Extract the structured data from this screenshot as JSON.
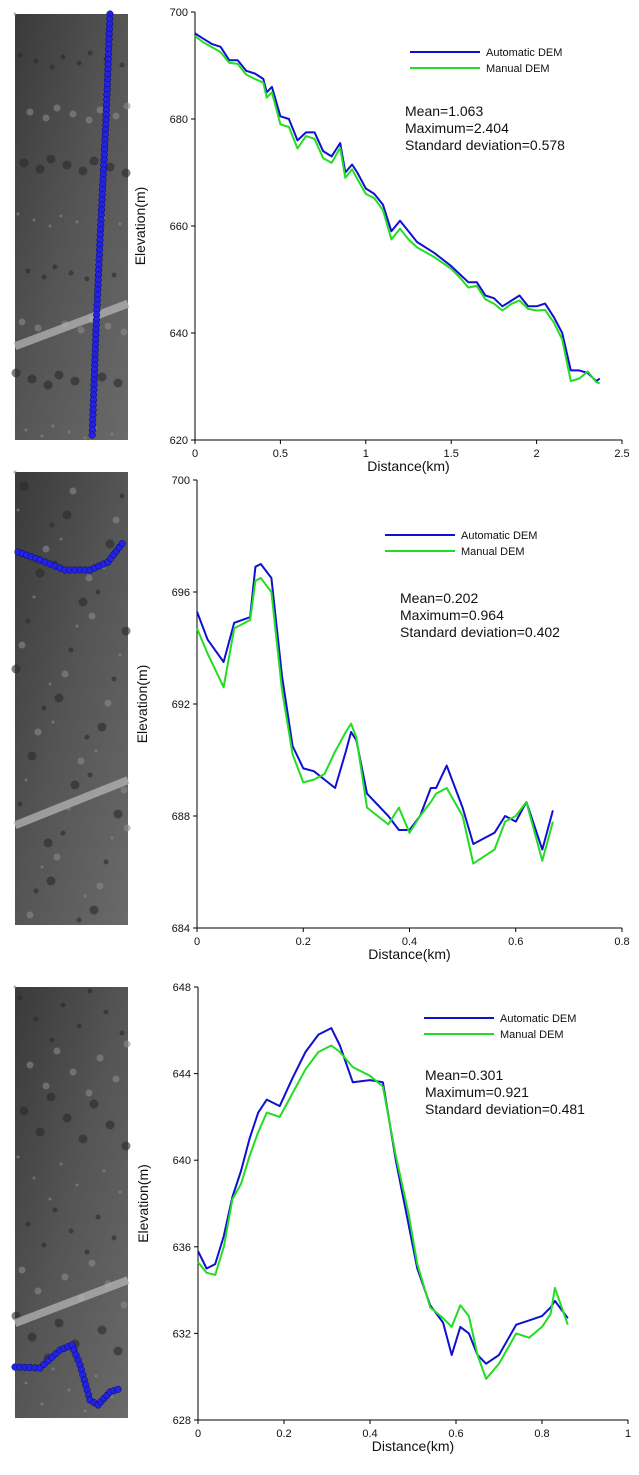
{
  "chart_data": [
    {
      "type": "line",
      "x": [
        0,
        0.05,
        0.1,
        0.15,
        0.2,
        0.25,
        0.3,
        0.35,
        0.4,
        0.42,
        0.45,
        0.5,
        0.55,
        0.6,
        0.65,
        0.7,
        0.75,
        0.8,
        0.85,
        0.88,
        0.92,
        0.95,
        1.0,
        1.05,
        1.1,
        1.15,
        1.2,
        1.25,
        1.3,
        1.4,
        1.5,
        1.55,
        1.6,
        1.65,
        1.7,
        1.75,
        1.8,
        1.85,
        1.9,
        1.95,
        2.0,
        2.05,
        2.1,
        2.15,
        2.2,
        2.25,
        2.3,
        2.35,
        2.37
      ],
      "series": [
        {
          "name": "Automatic DEM",
          "color": "#1010d0",
          "values": [
            696,
            695,
            694,
            693.5,
            691,
            691,
            689,
            688.5,
            687.5,
            685,
            686,
            680.5,
            680,
            676,
            677.5,
            677.5,
            674,
            673,
            675.5,
            670,
            671.5,
            670,
            667,
            666,
            664,
            659,
            661,
            659,
            657,
            655,
            652.5,
            651,
            649.5,
            649.5,
            647,
            646.5,
            645,
            646,
            647,
            645,
            645,
            645.5,
            643,
            640,
            633,
            633,
            632.5,
            631,
            631.5
          ]
        },
        {
          "name": "Manual DEM",
          "color": "#22dd22",
          "values": [
            695.5,
            694.3,
            693.4,
            692.5,
            690.5,
            690.3,
            688.3,
            687.5,
            686.8,
            684,
            685,
            679,
            678.5,
            674.5,
            676.8,
            676.3,
            672.7,
            671.8,
            674.6,
            669,
            670.6,
            668.8,
            666,
            665.2,
            663,
            657.5,
            659.5,
            657.5,
            656,
            654.2,
            652,
            650.4,
            648.5,
            648.8,
            646.3,
            645.5,
            644.2,
            645.4,
            646.1,
            644.5,
            644.2,
            644.3,
            642,
            638.8,
            631,
            631.5,
            632.8,
            630.8,
            630.6
          ]
        }
      ],
      "xlim": [
        0,
        2.5
      ],
      "xticks": [
        0,
        0.5,
        1,
        1.5,
        2,
        2.5
      ],
      "ylim": [
        620,
        700
      ],
      "yticks": [
        620,
        640,
        660,
        680,
        700
      ],
      "x_label": "Distance(km)",
      "y_label": "Elevation(m)",
      "annotations": [
        "Mean=1.063",
        "Maximum=2.404",
        "Standard deviation=0.578"
      ]
    },
    {
      "type": "line",
      "x": [
        0,
        0.02,
        0.05,
        0.07,
        0.1,
        0.11,
        0.12,
        0.14,
        0.16,
        0.18,
        0.2,
        0.22,
        0.24,
        0.26,
        0.28,
        0.29,
        0.3,
        0.32,
        0.36,
        0.38,
        0.4,
        0.42,
        0.44,
        0.45,
        0.47,
        0.5,
        0.52,
        0.56,
        0.58,
        0.6,
        0.62,
        0.65,
        0.67
      ],
      "series": [
        {
          "name": "Automatic DEM",
          "color": "#1010d0",
          "values": [
            695.3,
            694.3,
            693.5,
            694.9,
            695.1,
            696.9,
            697,
            696.5,
            693,
            690.5,
            689.7,
            689.6,
            689.3,
            689,
            690.3,
            691,
            690.7,
            688.8,
            688,
            687.5,
            687.5,
            688,
            689,
            689,
            689.8,
            688.3,
            687,
            687.4,
            688,
            687.8,
            688.5,
            686.8,
            688.2
          ]
        },
        {
          "name": "Manual DEM",
          "color": "#22dd22",
          "values": [
            694.7,
            693.8,
            692.6,
            694.7,
            695,
            696.4,
            696.5,
            696,
            692.5,
            690.2,
            689.2,
            689.3,
            689.5,
            690.3,
            691,
            691.3,
            690.8,
            688.3,
            687.7,
            688.3,
            687.4,
            688,
            688.5,
            688.8,
            689,
            688,
            686.3,
            686.8,
            687.8,
            688,
            688.5,
            686.4,
            687.8
          ]
        }
      ],
      "xlim": [
        0,
        0.8
      ],
      "xticks": [
        0,
        0.2,
        0.4,
        0.6,
        0.8
      ],
      "ylim": [
        684,
        700
      ],
      "yticks": [
        684,
        688,
        692,
        696,
        700
      ],
      "x_label": "Distance(km)",
      "y_label": "Elevation(m)",
      "annotations": [
        "Mean=0.202",
        "Maximum=0.964",
        "Standard deviation=0.402"
      ]
    },
    {
      "type": "line",
      "x": [
        0,
        0.02,
        0.04,
        0.06,
        0.08,
        0.1,
        0.12,
        0.14,
        0.16,
        0.19,
        0.22,
        0.25,
        0.28,
        0.31,
        0.33,
        0.36,
        0.4,
        0.43,
        0.46,
        0.49,
        0.51,
        0.54,
        0.57,
        0.59,
        0.61,
        0.63,
        0.65,
        0.67,
        0.7,
        0.74,
        0.77,
        0.8,
        0.82,
        0.83,
        0.86
      ],
      "series": [
        {
          "name": "Automatic DEM",
          "color": "#1010d0",
          "values": [
            635.8,
            635,
            635.2,
            636.5,
            638.3,
            639.5,
            641,
            642.2,
            642.8,
            642.5,
            643.8,
            645,
            645.8,
            646.1,
            645.3,
            643.6,
            643.7,
            643.6,
            640,
            637,
            635,
            633.3,
            632.5,
            631,
            632.3,
            632,
            631,
            630.6,
            631,
            632.4,
            632.6,
            632.8,
            633.2,
            633.5,
            632.7
          ]
        },
        {
          "name": "Manual DEM",
          "color": "#22dd22",
          "values": [
            635.3,
            634.8,
            634.7,
            636,
            638.2,
            638.9,
            640.2,
            641.3,
            642.2,
            642,
            643.1,
            644.2,
            645,
            645.3,
            645,
            644.3,
            643.9,
            643.4,
            640.2,
            637.5,
            635.2,
            633.2,
            632.7,
            632.3,
            633.3,
            632.8,
            631,
            629.9,
            630.6,
            632,
            631.8,
            632.3,
            632.9,
            634.1,
            632.4
          ]
        }
      ],
      "xlim": [
        0,
        1
      ],
      "xticks": [
        0,
        0.2,
        0.4,
        0.6,
        0.8,
        1
      ],
      "ylim": [
        628,
        648
      ],
      "yticks": [
        628,
        632,
        636,
        640,
        644,
        648
      ],
      "x_label": "Distance(km)",
      "y_label": "Elevation(m)",
      "annotations": [
        "Mean=0.301",
        "Maximum=0.921",
        "Standard deviation=0.481"
      ]
    }
  ]
}
